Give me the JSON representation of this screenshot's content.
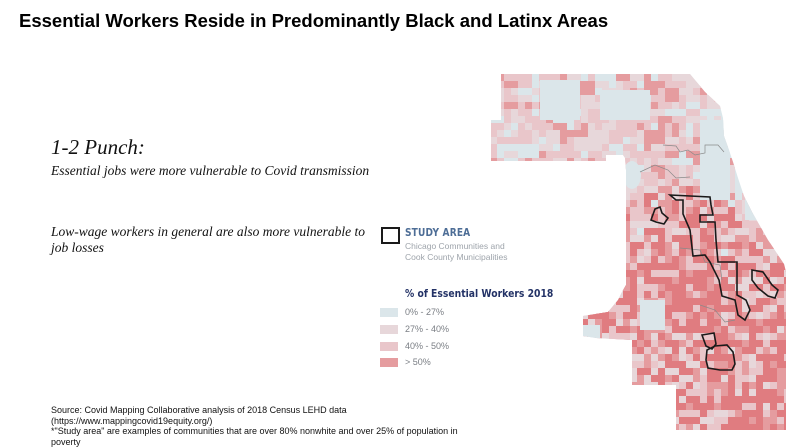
{
  "title": "Essential Workers Reside in Predominantly Black and Latinx Areas",
  "left_panel": {
    "heading": "1-2 Punch:",
    "point_1": "Essential jobs were more vulnerable to Covid transmission",
    "point_2": "Low-wage workers in general are also more vulnerable to job losses"
  },
  "legend": {
    "study_area": {
      "title": "STUDY AREA",
      "subtitle_line1": "Chicago Communities and",
      "subtitle_line2": "Cook County Municipalities",
      "outline_color": "#1a1a1a"
    },
    "title": "% of Essential Workers 2018",
    "items": [
      {
        "label": "0% - 27%",
        "color": "#dbe6ea"
      },
      {
        "label": "27% - 40%",
        "color": "#e7d7da"
      },
      {
        "label": "40% - 50%",
        "color": "#e9c6ca"
      },
      {
        "label": "> 50%",
        "color": "#e59c9f"
      }
    ]
  },
  "footer": {
    "line1": "Source: Covid Mapping Collaborative analysis of 2018 Census LEHD data",
    "line2": "(https://www.mappingcovid19equity.org/)",
    "line3": "*\"Study area\" are examples of communities that are over 80% nonwhite and over 25% of population in poverty"
  },
  "map": {
    "region": "Chicago / Cook County",
    "colors": {
      "low": "#dbe6ea",
      "mid_low": "#e7d7da",
      "mid_high": "#e9c6ca",
      "high": "#e59c9f",
      "highest": "#e07c80",
      "outline": "#1a1a1a",
      "muni_border": "#8a8a8a"
    }
  }
}
